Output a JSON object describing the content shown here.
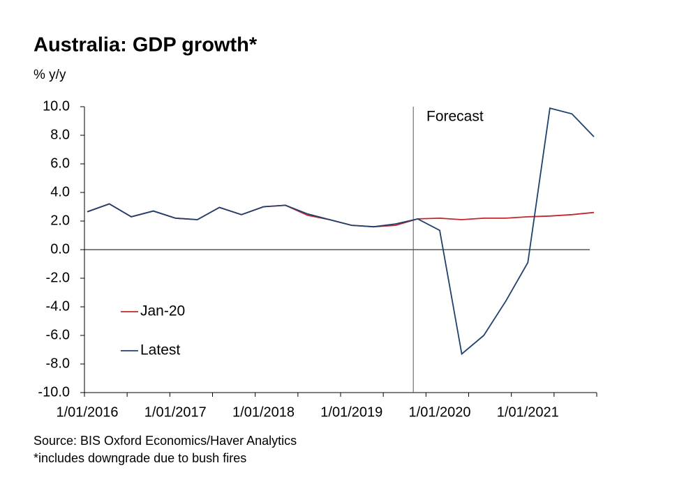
{
  "chart_data": {
    "type": "line",
    "title": "Australia: GDP growth*",
    "y_label": "% y/y",
    "annotation": "Forecast",
    "source": "Source: BIS Oxford Economics/Haver Analytics",
    "footnote": "*includes downgrade due to bush fires",
    "categories": [
      "1/01/2016",
      null,
      null,
      null,
      "1/01/2017",
      null,
      null,
      null,
      "1/01/2018",
      null,
      null,
      null,
      "1/01/2019",
      null,
      null,
      null,
      "1/01/2020",
      null,
      null,
      null,
      "1/01/2021",
      null,
      null,
      null
    ],
    "series": [
      {
        "name": "Jan-20",
        "color": "#c0272d",
        "values": [
          2.65,
          3.2,
          2.3,
          2.7,
          2.2,
          2.1,
          2.95,
          2.45,
          3.0,
          3.1,
          2.4,
          2.1,
          1.7,
          1.6,
          1.7,
          2.15,
          2.2,
          2.1,
          2.2,
          2.2,
          2.3,
          2.35,
          2.45,
          2.6
        ]
      },
      {
        "name": "Latest",
        "color": "#1f3f6e",
        "values": [
          2.65,
          3.2,
          2.3,
          2.7,
          2.2,
          2.1,
          2.95,
          2.45,
          3.0,
          3.1,
          2.5,
          2.1,
          1.7,
          1.6,
          1.8,
          2.15,
          1.35,
          -7.3,
          -6.0,
          -3.6,
          -0.9,
          9.9,
          9.5,
          7.9
        ]
      }
    ],
    "ylim": [
      -10,
      10
    ],
    "yticks": [
      {
        "value": -10,
        "label": "-10.0"
      },
      {
        "value": -8,
        "label": "-8.0"
      },
      {
        "value": -6,
        "label": "-6.0"
      },
      {
        "value": -4,
        "label": "-4.0"
      },
      {
        "value": -2,
        "label": "-2.0"
      },
      {
        "value": 0,
        "label": "0.0"
      },
      {
        "value": 2,
        "label": "2.0"
      },
      {
        "value": 4,
        "label": "4.0"
      },
      {
        "value": 6,
        "label": "6.0"
      },
      {
        "value": 8,
        "label": "8.0"
      },
      {
        "value": 10,
        "label": "10.0"
      }
    ]
  }
}
